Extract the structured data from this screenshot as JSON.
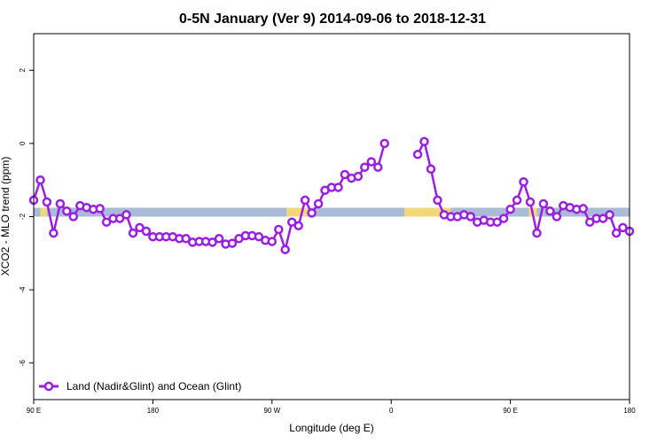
{
  "chart_data": {
    "type": "line",
    "title": "0-5N January (Ver 9)   2014-09-06 to 2018-12-31",
    "xlabel": "Longitude (deg E)",
    "ylabel": "XCO2 - MLO trend (ppm)",
    "xlim": [
      0,
      450
    ],
    "ylim": [
      -7,
      3
    ],
    "x_ticks": [
      {
        "value": 0,
        "label": "90 E"
      },
      {
        "value": 90,
        "label": "180"
      },
      {
        "value": 180,
        "label": "90 W"
      },
      {
        "value": 270,
        "label": "0"
      },
      {
        "value": 360,
        "label": "90 E"
      },
      {
        "value": 450,
        "label": "180"
      }
    ],
    "y_ticks": [
      -6,
      -4,
      -2,
      0,
      2
    ],
    "grid": false,
    "legend": {
      "position": "bottom-left"
    },
    "series": [
      {
        "name": "Land (Nadir&Glint) and Ocean (Glint)",
        "color": "#9b1fe0",
        "x": [
          0,
          5,
          10,
          15,
          20,
          25,
          30,
          35,
          40,
          45,
          50,
          55,
          60,
          65,
          70,
          75,
          80,
          85,
          90,
          95,
          100,
          105,
          110,
          115,
          120,
          125,
          130,
          135,
          140,
          145,
          150,
          155,
          160,
          165,
          170,
          175,
          180,
          185,
          190,
          195,
          200,
          205,
          210,
          215,
          220,
          225,
          230,
          235,
          240,
          245,
          250,
          255,
          260,
          265,
          null,
          290,
          295,
          300,
          305,
          310,
          315,
          320,
          325,
          330,
          335,
          340,
          345,
          350,
          355,
          360,
          365,
          370,
          375,
          380,
          385,
          390,
          395,
          400,
          405,
          410,
          415,
          420,
          425,
          430,
          435,
          440,
          445,
          450
        ],
        "y": [
          -1.55,
          -1.0,
          -1.6,
          -2.45,
          -1.65,
          -1.85,
          -2.0,
          -1.7,
          -1.75,
          -1.8,
          -1.78,
          -2.15,
          -2.05,
          -2.05,
          -1.95,
          -2.45,
          -2.3,
          -2.4,
          -2.55,
          -2.55,
          -2.55,
          -2.55,
          -2.6,
          -2.6,
          -2.7,
          -2.68,
          -2.68,
          -2.7,
          -2.6,
          -2.75,
          -2.73,
          -2.6,
          -2.52,
          -2.52,
          -2.55,
          -2.65,
          -2.68,
          -2.35,
          -2.9,
          -2.15,
          -2.25,
          -1.55,
          -1.9,
          -1.65,
          -1.28,
          -1.2,
          -1.2,
          -0.85,
          -0.95,
          -0.9,
          -0.65,
          -0.5,
          -0.65,
          0.0,
          null,
          -0.3,
          0.05,
          -0.7,
          -1.55,
          -1.95,
          -2.0,
          -2.0,
          -1.95,
          -2.0,
          -2.15,
          -2.1,
          -2.15,
          -2.15,
          -2.05,
          -1.8,
          -1.55,
          -1.05,
          -1.6,
          -2.45,
          -1.65,
          -1.85,
          -2.0,
          -1.7,
          -1.75,
          -1.8,
          -1.78,
          -2.15,
          -2.05,
          -2.05,
          -1.95,
          -2.45,
          -2.3,
          -2.4
        ]
      }
    ],
    "surface_bar": {
      "y": -1.88,
      "land_color": "#f5d77b",
      "ocean_color": "#a9bbd6",
      "land_segments": [
        [
          5,
          10
        ],
        [
          191,
          207
        ],
        [
          280,
          315
        ],
        [
          374,
          380
        ]
      ]
    }
  }
}
